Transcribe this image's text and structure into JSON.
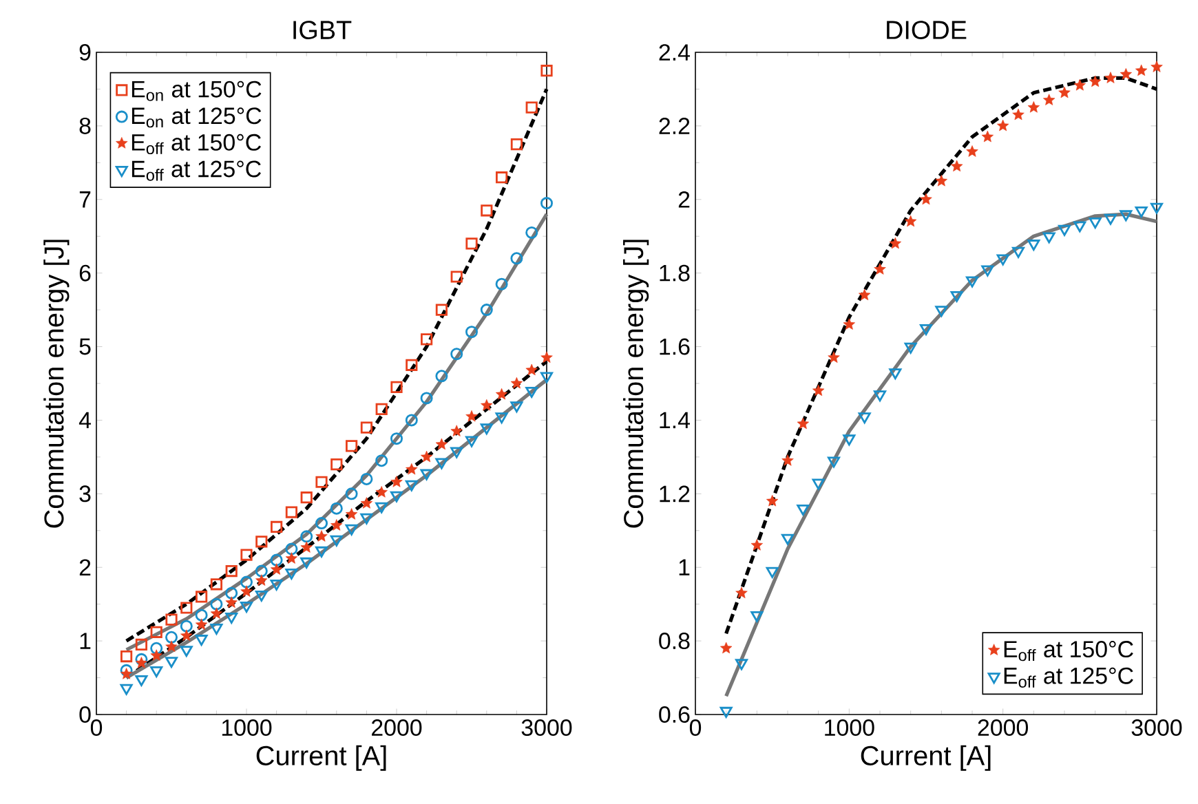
{
  "chart_data": [
    {
      "type": "scatter",
      "title": "IGBT",
      "xlabel": "Current [A]",
      "ylabel": "Commutation energy [J]",
      "xlim": [
        0,
        3000
      ],
      "ylim": [
        0,
        9
      ],
      "xticks": [
        0,
        1000,
        2000,
        3000
      ],
      "yticks": [
        0,
        1,
        2,
        3,
        4,
        5,
        6,
        7,
        8,
        9
      ],
      "legend": "top left",
      "grid": false,
      "x": [
        200,
        300,
        400,
        500,
        600,
        700,
        800,
        900,
        1000,
        1100,
        1200,
        1300,
        1400,
        1500,
        1600,
        1700,
        1800,
        1900,
        2000,
        2100,
        2200,
        2300,
        2400,
        2500,
        2600,
        2700,
        2800,
        2900,
        3000
      ],
      "series": [
        {
          "name": "E$_{on}$ at 150°C",
          "color": "#e8401c",
          "marker": "square",
          "values": [
            0.79,
            0.95,
            1.12,
            1.29,
            1.45,
            1.6,
            1.77,
            1.95,
            2.17,
            2.35,
            2.55,
            2.75,
            2.95,
            3.16,
            3.4,
            3.65,
            3.9,
            4.15,
            4.45,
            4.75,
            5.1,
            5.5,
            5.95,
            6.4,
            6.85,
            7.3,
            7.75,
            8.25,
            8.75
          ]
        },
        {
          "name": "E$_{on}$ at 125°C",
          "color": "#1a8fc9",
          "marker": "circle",
          "values": [
            0.6,
            0.75,
            0.9,
            1.05,
            1.2,
            1.35,
            1.5,
            1.65,
            1.8,
            1.95,
            2.1,
            2.25,
            2.42,
            2.6,
            2.8,
            3.0,
            3.2,
            3.45,
            3.75,
            4.0,
            4.3,
            4.6,
            4.9,
            5.2,
            5.5,
            5.85,
            6.2,
            6.55,
            6.95
          ]
        },
        {
          "name": "E$_{off}$ at 150°C",
          "color": "#e8401c",
          "marker": "star",
          "values": [
            0.55,
            0.7,
            0.8,
            0.92,
            1.07,
            1.22,
            1.37,
            1.52,
            1.67,
            1.82,
            1.97,
            2.12,
            2.27,
            2.42,
            2.57,
            2.72,
            2.87,
            3.02,
            3.16,
            3.33,
            3.5,
            3.67,
            3.85,
            4.05,
            4.2,
            4.35,
            4.5,
            4.68,
            4.85
          ]
        },
        {
          "name": "E$_{off}$ at 125°C",
          "color": "#1a8fc9",
          "marker": "triangle",
          "values": [
            0.36,
            0.48,
            0.6,
            0.73,
            0.88,
            1.03,
            1.18,
            1.33,
            1.48,
            1.63,
            1.78,
            1.93,
            2.08,
            2.23,
            2.38,
            2.53,
            2.68,
            2.83,
            2.98,
            3.13,
            3.28,
            3.43,
            3.58,
            3.73,
            3.9,
            4.05,
            4.2,
            4.4,
            4.6
          ]
        },
        {
          "type": "line",
          "color": "#000000",
          "line_style": "dashed",
          "marker": "none",
          "x": [
            200,
            600,
            1000,
            1400,
            1800,
            2200,
            2600,
            3000
          ],
          "values": [
            1.0,
            1.5,
            2.1,
            2.8,
            3.75,
            5.0,
            6.6,
            8.5
          ]
        },
        {
          "type": "line",
          "color": "#777777",
          "line_style": "solid",
          "marker": "none",
          "x": [
            200,
            600,
            1000,
            1400,
            1800,
            2200,
            2600,
            3000
          ],
          "values": [
            0.88,
            1.3,
            1.85,
            2.45,
            3.25,
            4.25,
            5.45,
            6.8
          ]
        },
        {
          "type": "line",
          "color": "#000000",
          "line_style": "dashed",
          "marker": "none",
          "x": [
            200,
            600,
            1000,
            1400,
            1800,
            2200,
            2600,
            3000
          ],
          "values": [
            0.5,
            1.05,
            1.65,
            2.27,
            2.9,
            3.5,
            4.15,
            4.8
          ]
        },
        {
          "type": "line",
          "color": "#777777",
          "line_style": "solid",
          "marker": "none",
          "x": [
            200,
            600,
            1000,
            1400,
            1800,
            2200,
            2600,
            3000
          ],
          "values": [
            0.5,
            0.98,
            1.5,
            2.05,
            2.65,
            3.25,
            3.9,
            4.55
          ]
        }
      ]
    },
    {
      "type": "scatter",
      "title": "DIODE",
      "xlabel": "Current [A]",
      "ylabel": "Commutation energy [J]",
      "xlim": [
        0,
        3000
      ],
      "ylim": [
        0.6,
        2.4
      ],
      "xticks": [
        0,
        1000,
        2000,
        3000
      ],
      "yticks": [
        0.6,
        0.8,
        1,
        1.2,
        1.4,
        1.6,
        1.8,
        2,
        2.2,
        2.4
      ],
      "legend": "bottom right",
      "grid": false,
      "x": [
        200,
        300,
        400,
        500,
        600,
        700,
        800,
        900,
        1000,
        1100,
        1200,
        1300,
        1400,
        1500,
        1600,
        1700,
        1800,
        1900,
        2000,
        2100,
        2200,
        2300,
        2400,
        2500,
        2600,
        2700,
        2800,
        2900,
        3000
      ],
      "series": [
        {
          "name": "E$_{off}$ at 150°C",
          "color": "#e8401c",
          "marker": "star",
          "values": [
            0.78,
            0.93,
            1.06,
            1.18,
            1.29,
            1.39,
            1.48,
            1.57,
            1.66,
            1.74,
            1.81,
            1.88,
            1.94,
            2.0,
            2.05,
            2.09,
            2.13,
            2.17,
            2.2,
            2.23,
            2.25,
            2.27,
            2.29,
            2.31,
            2.32,
            2.33,
            2.34,
            2.35,
            2.36
          ]
        },
        {
          "name": "E$_{off}$ at 125°C",
          "color": "#1a8fc9",
          "marker": "triangle",
          "values": [
            0.61,
            0.74,
            0.87,
            0.99,
            1.08,
            1.16,
            1.23,
            1.29,
            1.35,
            1.41,
            1.47,
            1.53,
            1.6,
            1.65,
            1.7,
            1.74,
            1.78,
            1.81,
            1.84,
            1.86,
            1.88,
            1.9,
            1.92,
            1.93,
            1.94,
            1.95,
            1.96,
            1.97,
            1.98
          ]
        },
        {
          "type": "line",
          "color": "#000000",
          "line_style": "dashed",
          "marker": "none",
          "x": [
            200,
            600,
            1000,
            1400,
            1800,
            2200,
            2600,
            2800,
            3000
          ],
          "values": [
            0.82,
            1.3,
            1.68,
            1.97,
            2.17,
            2.29,
            2.33,
            2.33,
            2.3
          ]
        },
        {
          "type": "line",
          "color": "#777777",
          "line_style": "solid",
          "marker": "none",
          "x": [
            200,
            600,
            1000,
            1400,
            1800,
            2200,
            2600,
            2800,
            3000
          ],
          "values": [
            0.65,
            1.05,
            1.37,
            1.6,
            1.78,
            1.9,
            1.955,
            1.96,
            1.94
          ]
        }
      ]
    }
  ]
}
